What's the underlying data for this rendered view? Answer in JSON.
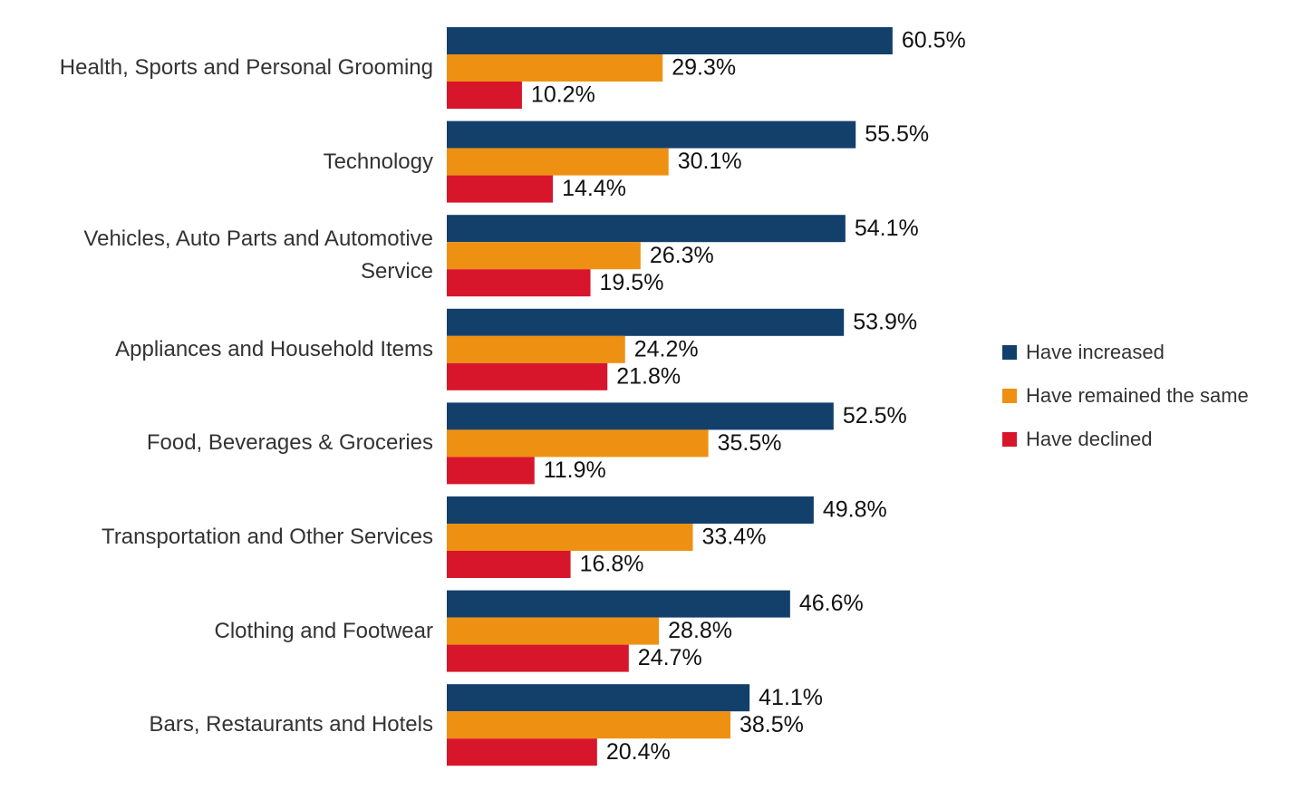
{
  "chart_data": {
    "type": "bar",
    "orientation": "horizontal",
    "categories": [
      "Health, Sports and Personal Grooming",
      "Technology",
      "Vehicles, Auto Parts and Automotive Service",
      "Appliances and Household Items",
      "Food, Beverages & Groceries",
      "Transportation and Other Services",
      "Clothing and Footwear",
      "Bars, Restaurants and Hotels"
    ],
    "series": [
      {
        "name": "Have increased",
        "color": "#133f6b",
        "values": [
          60.5,
          55.5,
          54.1,
          53.9,
          52.5,
          49.8,
          46.6,
          41.1
        ],
        "value_labels": [
          "60.5%",
          "55.5%",
          "54.1%",
          "53.9%",
          "52.5%",
          "49.8%",
          "46.6%",
          "41.1%"
        ]
      },
      {
        "name": "Have remained the same",
        "color": "#ee9112",
        "values": [
          29.3,
          30.1,
          26.3,
          24.2,
          35.5,
          33.4,
          28.8,
          38.5
        ],
        "value_labels": [
          "29.3%",
          "30.1%",
          "26.3%",
          "24.2%",
          "35.5%",
          "33.4%",
          "28.8%",
          "38.5%"
        ]
      },
      {
        "name": "Have declined",
        "color": "#d8162b",
        "values": [
          10.2,
          14.4,
          19.5,
          21.8,
          11.9,
          16.8,
          24.7,
          20.4
        ],
        "value_labels": [
          "10.2%",
          "14.4%",
          "19.5%",
          "21.8%",
          "11.9%",
          "16.8%",
          "24.7%",
          "20.4%"
        ]
      }
    ],
    "legend": "right"
  }
}
